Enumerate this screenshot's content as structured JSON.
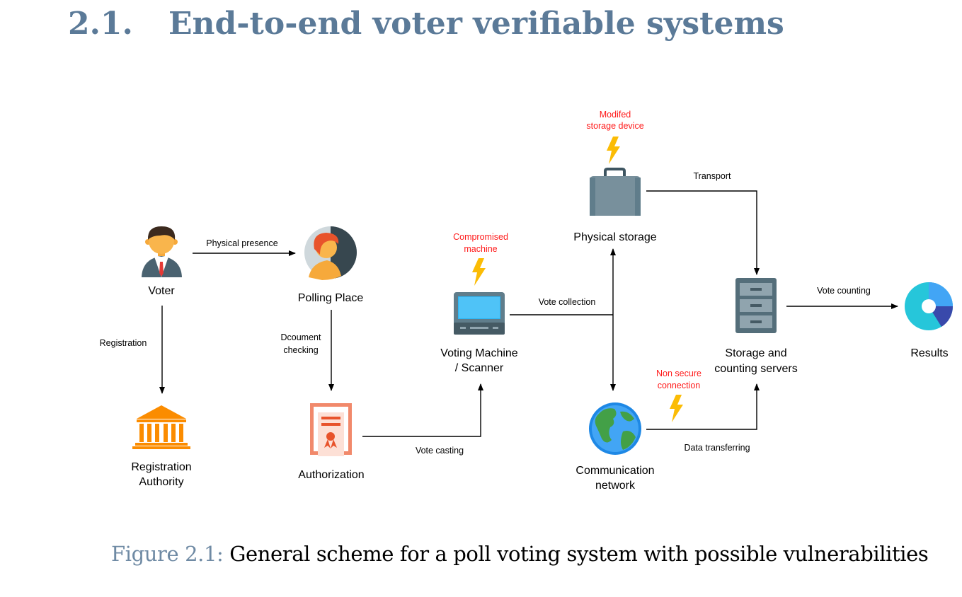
{
  "heading": {
    "number": "2.1.",
    "title": "End-to-end voter verifiable systems"
  },
  "diagram": {
    "nodes": {
      "voter": "Voter",
      "polling_place": "Polling Place",
      "registration_authority": [
        "Registration",
        "Authority"
      ],
      "authorization": "Authorization",
      "voting_machine": [
        "Voting Machine",
        "/ Scanner"
      ],
      "physical_storage": "Physical storage",
      "communication_network": [
        "Communication",
        "network"
      ],
      "storage_servers": [
        "Storage and",
        "counting servers"
      ],
      "results": "Results"
    },
    "edges": {
      "physical_presence": "Physical presence",
      "registration": "Registration",
      "document_checking": [
        "Dcoument",
        "checking"
      ],
      "vote_casting": "Vote casting",
      "vote_collection": "Vote collection",
      "transport": "Transport",
      "vote_counting": "Vote counting",
      "data_transferring": "Data transferring"
    },
    "vulnerabilities": {
      "compromised_machine": [
        "Compromised",
        "machine"
      ],
      "modified_storage": [
        "Modifed",
        "storage device"
      ],
      "non_secure_connection": [
        "Non secure",
        "connection"
      ]
    },
    "colors": {
      "vulnerability_text": "#ff1a1a",
      "lightning": "#fbbc05",
      "arrow": "#000000",
      "heading": "#5b7a98",
      "figure_label": "#6f8aa4"
    }
  },
  "caption": {
    "label": "Figure 2.1:",
    "text": "General scheme for a poll voting system with possible vulnerabilities"
  }
}
